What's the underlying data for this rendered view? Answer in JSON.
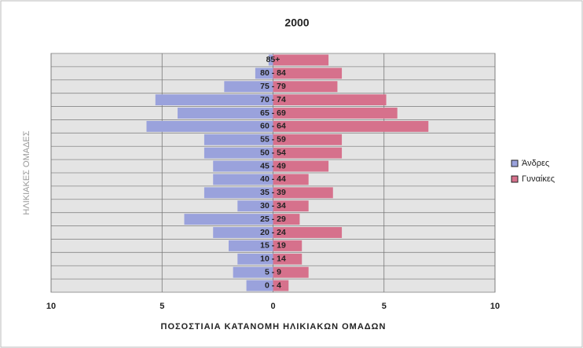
{
  "chart_data": {
    "type": "pyramid",
    "title": "2000",
    "xlabel": "ΠΟΣΟΣΤΙΑΙΑ ΚΑΤΑΝΟΜΗ ΗΛΙΚΙΑΚΩΝ ΟΜΑΔΩΝ",
    "ylabel": "ΗΛΙΚΙΑΚΕΣ ΟΜΑΔΕΣ",
    "categories": [
      "85+",
      "80 - 84",
      "75 - 79",
      "70 - 74",
      "65 - 69",
      "60 - 64",
      "55 - 59",
      "50 - 54",
      "45 - 49",
      "40 - 44",
      "35 - 39",
      "30 - 34",
      "25 - 29",
      "20 - 24",
      "15 - 19",
      "10 - 14",
      "5 - 9",
      "0 - 4"
    ],
    "series": [
      {
        "name": "Άνδρες",
        "color": "#9aa2dc",
        "values": [
          -0.2,
          -0.8,
          -2.2,
          -5.3,
          -4.3,
          -5.7,
          -3.1,
          -3.1,
          -2.7,
          -2.7,
          -3.1,
          -1.6,
          -4.0,
          -2.7,
          -2.0,
          -1.6,
          -1.8,
          -1.2
        ]
      },
      {
        "name": "Γυναίκες",
        "color": "#d6718c",
        "values": [
          2.5,
          3.1,
          2.9,
          5.1,
          5.6,
          7.0,
          3.1,
          3.1,
          2.5,
          1.6,
          2.7,
          1.6,
          1.2,
          3.1,
          1.3,
          1.3,
          1.6,
          0.7
        ]
      }
    ],
    "xlim": [
      -10,
      10
    ],
    "xticks": [
      {
        "value": -10,
        "label": "10"
      },
      {
        "value": -5,
        "label": "5"
      },
      0,
      5,
      10
    ],
    "legend": "right"
  }
}
